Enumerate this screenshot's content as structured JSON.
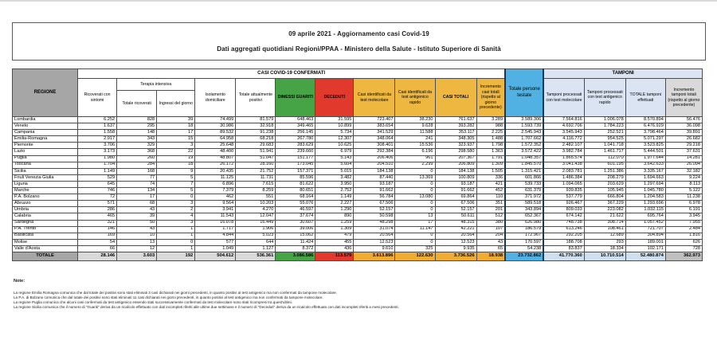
{
  "title": {
    "line1": "09 aprile 2021 - Aggiornamento casi Covid-19",
    "line2": "Dati aggregati quotidiani Regioni/PPAA - Ministero della Salute - Istituto Superiore di Sanità"
  },
  "colors": {
    "header_gray": "#a6a6a6",
    "green": "#46a446",
    "red": "#e13a2c",
    "gold_header": "#eeb73f",
    "gold_total": "#f0ab32",
    "blue": "#50b1e2",
    "lavender": "#dae4f2",
    "light_gray": "#d9d9d9",
    "navy_border": "#17375d"
  },
  "table": {
    "headers": {
      "regione": "REGIONE",
      "group_casi": "CASI COVID-19 CONFERMATI",
      "group_tamponi": "TAMPONI",
      "group_terapia": "Terapia intensiva",
      "ricoverati": "Ricoverati con sintomi",
      "totale_ricoverati": "Totale ricoverati",
      "ingressi": "Ingressi del giorno",
      "isolamento": "Isolamento domiciliare",
      "attualmente_positivi": "Totale attualmente positivi",
      "dimessi": "DIMESSI GUARITI",
      "deceduti": "DECEDUTI",
      "casi_molecolare": "Casi identificati da test molecolare",
      "casi_antigenico": "Casi identificati da test antigenico rapido",
      "casi_totali": "CASI TOTALI",
      "incremento_casi": "Incremento casi totali (rispetto al giorno precedente)",
      "persone_testate": "Totale persone testate",
      "tamponi_molecolare": "Tamponi processati con test molecolare",
      "tamponi_antigenico": "Tamponi processati con test antigenico rapido",
      "totale_tamponi": "TOTALE tamponi effettuati",
      "incremento_tamponi": "Incremento tamponi totali (rispetto al giorno precedente)"
    },
    "rows": [
      [
        "Lombardia",
        "6.252",
        "828",
        "39",
        "74.499",
        "81.579",
        "648.463",
        "31.595",
        "723.407",
        "38.230",
        "761.637",
        "3.289",
        "3.589.306",
        "7.564.816",
        "1.006.078",
        "8.570.894",
        "56.476"
      ],
      [
        "Veneto",
        "1.637",
        "295",
        "18",
        "30.986",
        "32.918",
        "349.465",
        "10.899",
        "383.654",
        "9.628",
        "393.282",
        "988",
        "1.593.739",
        "4.692.706",
        "1.784.223",
        "6.476.929",
        "36.098"
      ],
      [
        "Campania",
        "1.558",
        "148",
        "17",
        "89.532",
        "91.238",
        "256.145",
        "5.734",
        "341.529",
        "11.588",
        "353.117",
        "2.225",
        "2.545.943",
        "3.545.943",
        "252.521",
        "3.798.464",
        "39.891"
      ],
      [
        "Emilia-Romagna",
        "2.917",
        "343",
        "15",
        "64.958",
        "68.218",
        "267.780",
        "12.307",
        "348.064",
        "241",
        "348.305",
        "1.488",
        "1.707.662",
        "4.116.772",
        "954.525",
        "5.071.297",
        "26.682"
      ],
      [
        "Piemonte",
        "3.706",
        "329",
        "3",
        "25.648",
        "29.683",
        "283.629",
        "10.625",
        "308.401",
        "15.536",
        "323.937",
        "1.798",
        "1.572.352",
        "2.482.107",
        "1.041.718",
        "3.523.825",
        "29.218"
      ],
      [
        "Lazio",
        "3.173",
        "368",
        "22",
        "48.400",
        "51.941",
        "239.660",
        "6.979",
        "292.384",
        "6.196",
        "298.580",
        "1.363",
        "3.572.422",
        "3.982.784",
        "1.461.717",
        "5.444.501",
        "37.631"
      ],
      [
        "Puglia",
        "1.980",
        "260",
        "19",
        "48.807",
        "51.047",
        "151.177",
        "5.143",
        "206.406",
        "961",
        "207.367",
        "1.791",
        "1.048.357",
        "1.865.574",
        "112.070",
        "1.977.644",
        "14.281"
      ],
      [
        "Toscana",
        "1.704",
        "284",
        "18",
        "26.172",
        "28.160",
        "173.045",
        "5.604",
        "204.510",
        "2.299",
        "206.809",
        "1.309",
        "1.845.570",
        "3.041.438",
        "601.195",
        "3.642.633",
        "26.094"
      ],
      [
        "Sicilia",
        "1.149",
        "168",
        "9",
        "20.435",
        "21.752",
        "157.371",
        "5.015",
        "184.138",
        "0",
        "184.138",
        "1.505",
        "1.315.421",
        "2.083.781",
        "1.251.386",
        "3.335.167",
        "32.182"
      ],
      [
        "Friuli Venezia Giulia",
        "529",
        "77",
        "5",
        "11.125",
        "11.731",
        "85.596",
        "3.482",
        "87.440",
        "13.369",
        "100.809",
        "336",
        "601.866",
        "1.486.384",
        "208.279",
        "1.694.663",
        "9.224"
      ],
      [
        "Liguria",
        "645",
        "74",
        "7",
        "6.896",
        "7.615",
        "81.622",
        "3.950",
        "93.187",
        "0",
        "93.187",
        "421",
        "539.733",
        "1.094.065",
        "203.629",
        "1.297.694",
        "8.113"
      ],
      [
        "Marche",
        "746",
        "134",
        "5",
        "7.379",
        "8.259",
        "80.651",
        "2.752",
        "91.662",
        "0",
        "91.662",
        "452",
        "631.379",
        "939.835",
        "105.945",
        "1.045.780",
        "5.122"
      ],
      [
        "P.A. Bolzano",
        "72",
        "17",
        "0",
        "462",
        "551",
        "68.164",
        "1.149",
        "56.784",
        "13.080",
        "69.864",
        "110",
        "371.972",
        "537.779",
        "666.804",
        "1.204.583",
        "11.238"
      ],
      [
        "Abruzzo",
        "571",
        "68",
        "3",
        "9.564",
        "10.203",
        "55.076",
        "2.227",
        "67.506",
        "0",
        "67.506",
        "351",
        "589.518",
        "926.467",
        "367.229",
        "1.293.696",
        "6.978"
      ],
      [
        "Umbria",
        "286",
        "43",
        "2",
        "3.941",
        "4.270",
        "46.597",
        "1.290",
        "52.157",
        "0",
        "52.157",
        "201",
        "343.894",
        "809.033",
        "223.082",
        "1.032.115",
        "6.191"
      ],
      [
        "Calabria",
        "465",
        "39",
        "4",
        "11.543",
        "12.047",
        "37.674",
        "890",
        "50.598",
        "13",
        "50.611",
        "512",
        "652.367",
        "674.142",
        "21.622",
        "695.764",
        "3.945"
      ],
      [
        "Sardegna",
        "321",
        "50",
        "3",
        "16.078",
        "16.449",
        "30.607",
        "1.259",
        "48.298",
        "17",
        "48.315",
        "380",
        "626.980",
        "748.738",
        "308.714",
        "1.057.452",
        "7.955"
      ],
      [
        "P.A. Trento",
        "146",
        "43",
        "1",
        "1.717",
        "1.906",
        "39.006",
        "1.309",
        "31.074",
        "11.147",
        "42.221",
        "107",
        "186.579",
        "613.246",
        "108.461",
        "721.707",
        "2.484"
      ],
      [
        "Basilicata",
        "169",
        "10",
        "1",
        "4.844",
        "5.023",
        "15.062",
        "479",
        "20.564",
        "0",
        "20.564",
        "204",
        "172.967",
        "292.205",
        "12.689",
        "304.894",
        "1.816"
      ],
      [
        "Molise",
        "54",
        "13",
        "0",
        "577",
        "644",
        "11.424",
        "455",
        "12.523",
        "0",
        "12.523",
        "43",
        "170.597",
        "188.708",
        "293",
        "189.001",
        "626"
      ],
      [
        "Valle d'Aosta",
        "66",
        "12",
        "1",
        "1.049",
        "1.127",
        "8.372",
        "436",
        "9.610",
        "325",
        "9.935",
        "65",
        "54.238",
        "83.837",
        "18.334",
        "102.171",
        "728"
      ]
    ],
    "total_row": [
      "TOTALE",
      "28.146",
      "3.603",
      "192",
      "504.612",
      "536.361",
      "3.086.586",
      "113.579",
      "3.613.896",
      "122.630",
      "3.736.526",
      "18.938",
      "23.732.862",
      "41.770.360",
      "10.710.514",
      "52.480.874",
      "362.973"
    ]
  },
  "notes": {
    "label": "Note:",
    "items": [
      "La regione Emilia Romagna comunica che dal totale dei positivi sono stati eliminati 3 casi dichiarati nei giorni precedenti, in quanto positivi al test antigenico ma non confermati da tampone molecolare.",
      "La P.A. di Bolzano comunica che dal totale dei positivi sono stati eliminati 11 casi dichiarati nei giorni precedenti, in quanto positivi al test antigenico ma non confermati da tampone molecolare.",
      "La regione Puglia comunica che alcuni casi confermati da test antigenico essendo stati successivamente confermati da test molecolare sono stati ricompresi tra quest'ultimi.",
      "La regione Sicilia comunica che il numero di \"Guariti\" deriva da un ricalcolo effettuato con dati incompleti riferiti alle ultime due settimane e il numero di \"Deceduti\" deriva da un ricalcolo effettuato con dati incompleti riferiti a mesi precedenti."
    ]
  }
}
